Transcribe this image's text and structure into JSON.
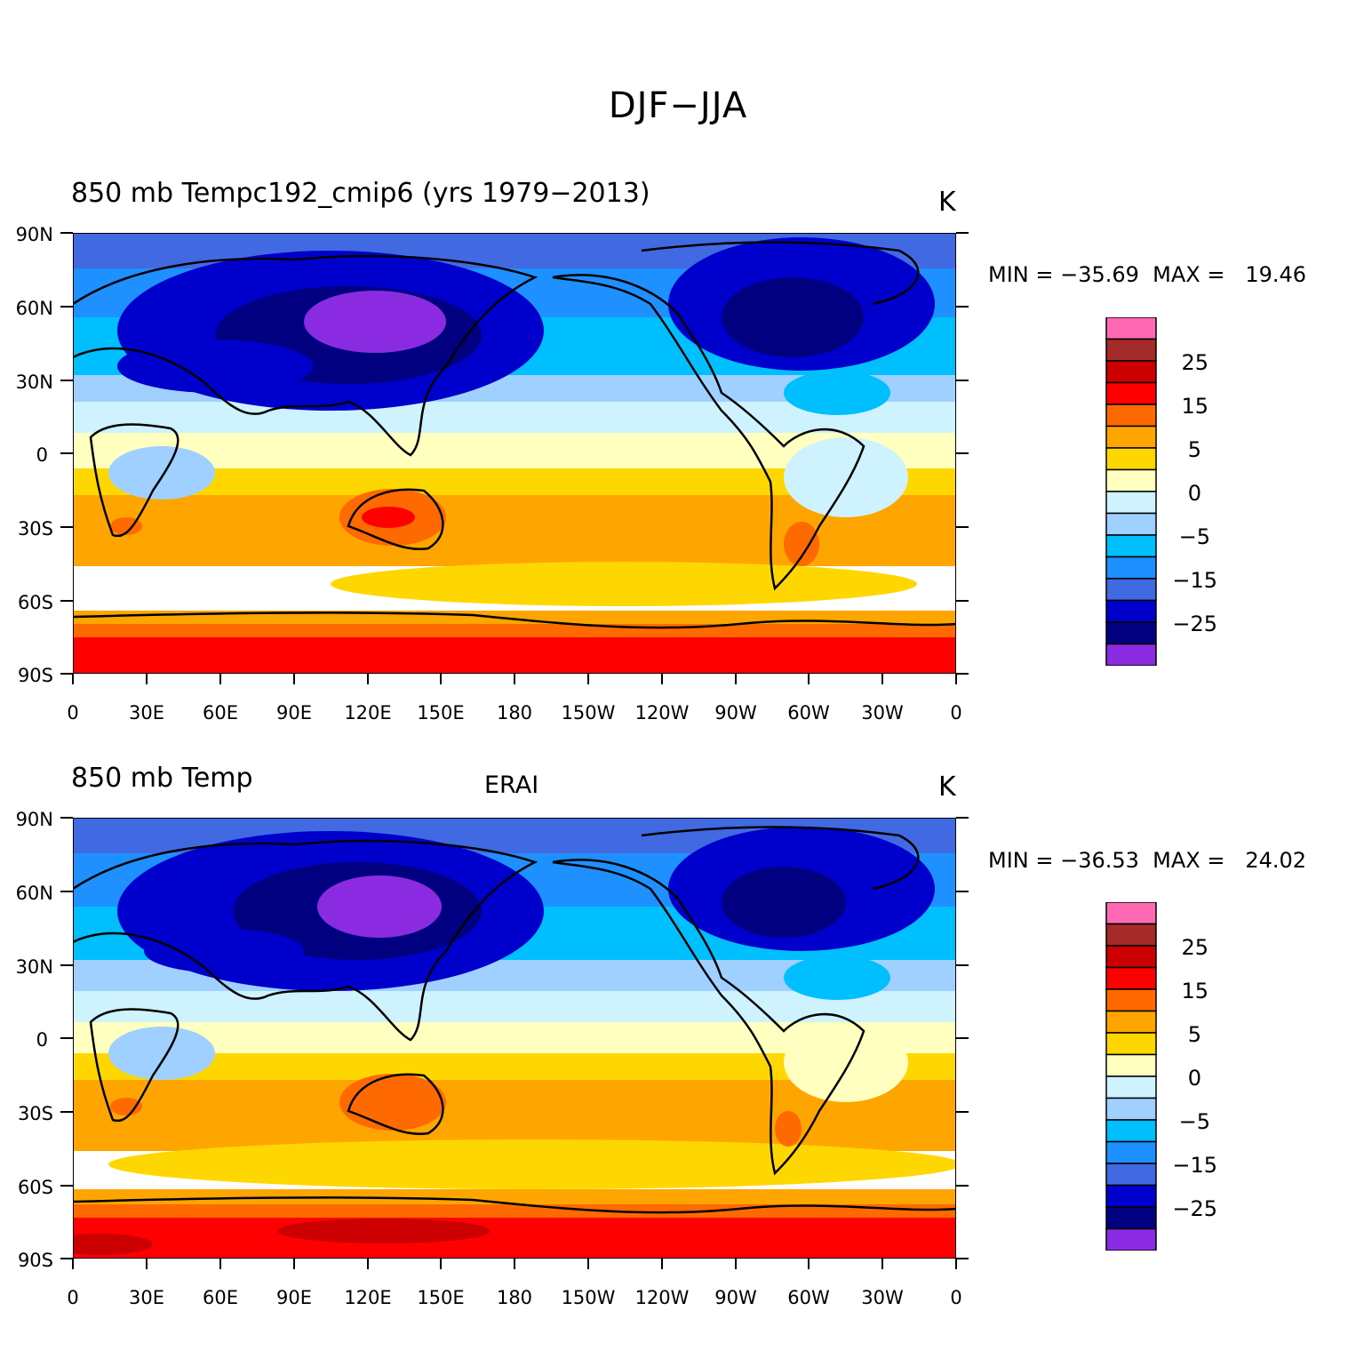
{
  "figure_title": "DJF−JJA",
  "chart_data": [
    {
      "type": "map",
      "title": "850 mb Tempc192_cmip6 (yrs 1979−2013)",
      "center_title": "",
      "units": "K",
      "stats_text": "MIN = −35.69  MAX =   19.46",
      "min": -35.69,
      "max": 19.46,
      "lat_ticks": [
        "90N",
        "60N",
        "30N",
        "0",
        "30S",
        "60S",
        "90S"
      ],
      "lon_ticks": [
        "0",
        "30E",
        "60E",
        "90E",
        "120E",
        "150E",
        "180",
        "150W",
        "120W",
        "90W",
        "60W",
        "30W",
        "0"
      ],
      "lat_range": [
        -90,
        90
      ],
      "lon_range": [
        0,
        360
      ]
    },
    {
      "type": "map",
      "title": "850 mb Temp",
      "center_title": "ERAI",
      "units": "K",
      "stats_text": "MIN = −36.53  MAX =   24.02",
      "min": -36.53,
      "max": 24.02,
      "lat_ticks": [
        "90N",
        "60N",
        "30N",
        "0",
        "30S",
        "60S",
        "90S"
      ],
      "lon_ticks": [
        "0",
        "30E",
        "60E",
        "90E",
        "120E",
        "150E",
        "180",
        "150W",
        "120W",
        "90W",
        "60W",
        "30W",
        "0"
      ],
      "lat_range": [
        -90,
        90
      ],
      "lon_range": [
        0,
        360
      ]
    }
  ],
  "colorbar": {
    "labels": [
      "25",
      "15",
      "5",
      "0",
      "−5",
      "−15",
      "−25"
    ],
    "colors": [
      "#ff69b4",
      "#a52a2a",
      "#cd0000",
      "#ff0000",
      "#ff6a00",
      "#ffa500",
      "#ffd700",
      "#ffffc0",
      "#cff2ff",
      "#a0d0ff",
      "#00bfff",
      "#1e90ff",
      "#4169e1",
      "#0000cd",
      "#000080",
      "#8a2be2"
    ]
  }
}
